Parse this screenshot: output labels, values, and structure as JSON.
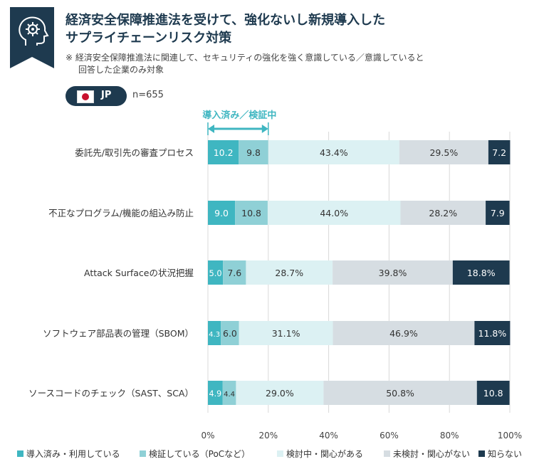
{
  "header": {
    "icon": "head-gear-icon",
    "title": "経済安全保障推進法を受けて、強化ないし新規導入した\nサプライチェーンリスク対策",
    "note_line1": "※ 経済安全保障推進法に関連して、セキュリティの強化を強く意識している／意識していると",
    "note_line2": "回答した企業のみ対象",
    "badge": "JP",
    "n": "n=655"
  },
  "colors": {
    "title": "#1e3a4f",
    "accent": "#3fb6c1"
  },
  "chart_data": {
    "type": "bar",
    "orientation": "horizontal",
    "stacked": true,
    "categories": [
      "委託先/取引先の審査プロセス",
      "不正なプログラム/機能の組込み防止",
      "Attack Surfaceの状況把握",
      "ソフトウェア部品表の管理（SBOM）",
      "ソースコードのチェック（SAST、SCA）"
    ],
    "series": [
      {
        "name": "導入済み・利用している",
        "color": "#3fb6c1",
        "text_color": "#ffffff",
        "values": [
          10.2,
          9.0,
          5.0,
          4.3,
          4.9
        ],
        "labels": [
          "10.2",
          "9.0",
          "5.0",
          "4.3",
          "4.9"
        ]
      },
      {
        "name": "検証している（PoCなど）",
        "color": "#8fd0d6",
        "text_color": "#333333",
        "values": [
          9.8,
          10.8,
          7.6,
          6.0,
          4.4
        ],
        "labels": [
          "9.8",
          "10.8",
          "7.6",
          "6.0",
          "4.4"
        ]
      },
      {
        "name": "検討中・関心がある",
        "color": "#dcf1f3",
        "text_color": "#333333",
        "values": [
          43.4,
          44.0,
          28.7,
          31.1,
          29.0
        ],
        "labels": [
          "43.4%",
          "44.0%",
          "28.7%",
          "31.1%",
          "29.0%"
        ]
      },
      {
        "name": "未検討・関心がない",
        "color": "#d6dde2",
        "text_color": "#333333",
        "values": [
          29.5,
          28.2,
          39.8,
          46.9,
          50.8
        ],
        "labels": [
          "29.5%",
          "28.2%",
          "39.8%",
          "46.9%",
          "50.8%"
        ]
      },
      {
        "name": "知らない",
        "color": "#1e3a4f",
        "text_color": "#ffffff",
        "values": [
          7.2,
          7.9,
          18.8,
          11.8,
          10.8
        ],
        "labels": [
          "7.2",
          "7.9",
          "18.8%",
          "11.8%",
          "10.8"
        ]
      }
    ],
    "xlim": [
      0,
      100
    ],
    "xticks": [
      "0%",
      "20%",
      "40%",
      "60%",
      "80%",
      "100%"
    ],
    "xtick_values": [
      0,
      20,
      40,
      60,
      80,
      100
    ],
    "bracket_label": "導入済み／検証中",
    "bracket_range": [
      0,
      20
    ],
    "legend_position": "bottom",
    "grid": "vertical"
  }
}
